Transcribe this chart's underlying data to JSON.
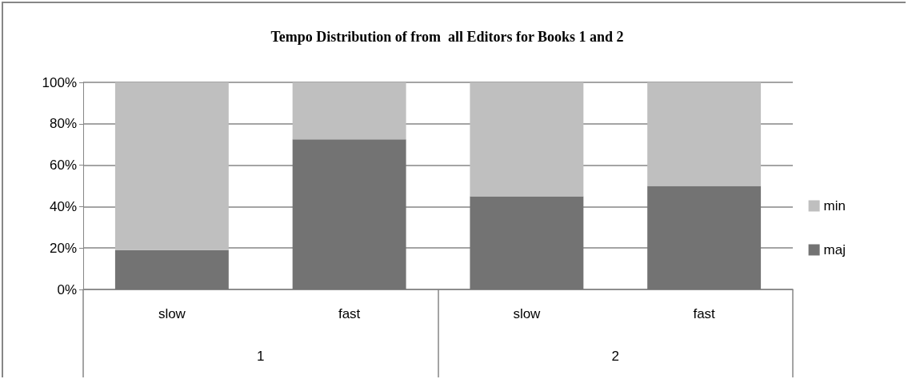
{
  "chart_data": {
    "type": "bar",
    "title": "Tempo Distribution of from  all Editors for Books 1 and 2",
    "categories": [
      "slow",
      "fast",
      "slow",
      "fast"
    ],
    "annotations": [
      "1",
      "2"
    ],
    "stacked": true,
    "series": [
      {
        "name": "maj",
        "color": "#737373",
        "values": [
          19,
          72.5,
          45,
          50
        ]
      },
      {
        "name": "min",
        "color": "#bfbfbf",
        "values": [
          81,
          27.5,
          55,
          50
        ]
      }
    ],
    "ylim": [
      0,
      100
    ],
    "yticks": [
      {
        "value": 0,
        "label": "0%"
      },
      {
        "value": 20,
        "label": "20%"
      },
      {
        "value": 40,
        "label": "40%"
      },
      {
        "value": 60,
        "label": "60%"
      },
      {
        "value": 80,
        "label": "80%"
      },
      {
        "value": 100,
        "label": "100%"
      }
    ],
    "grid": "y",
    "legend": "right"
  }
}
